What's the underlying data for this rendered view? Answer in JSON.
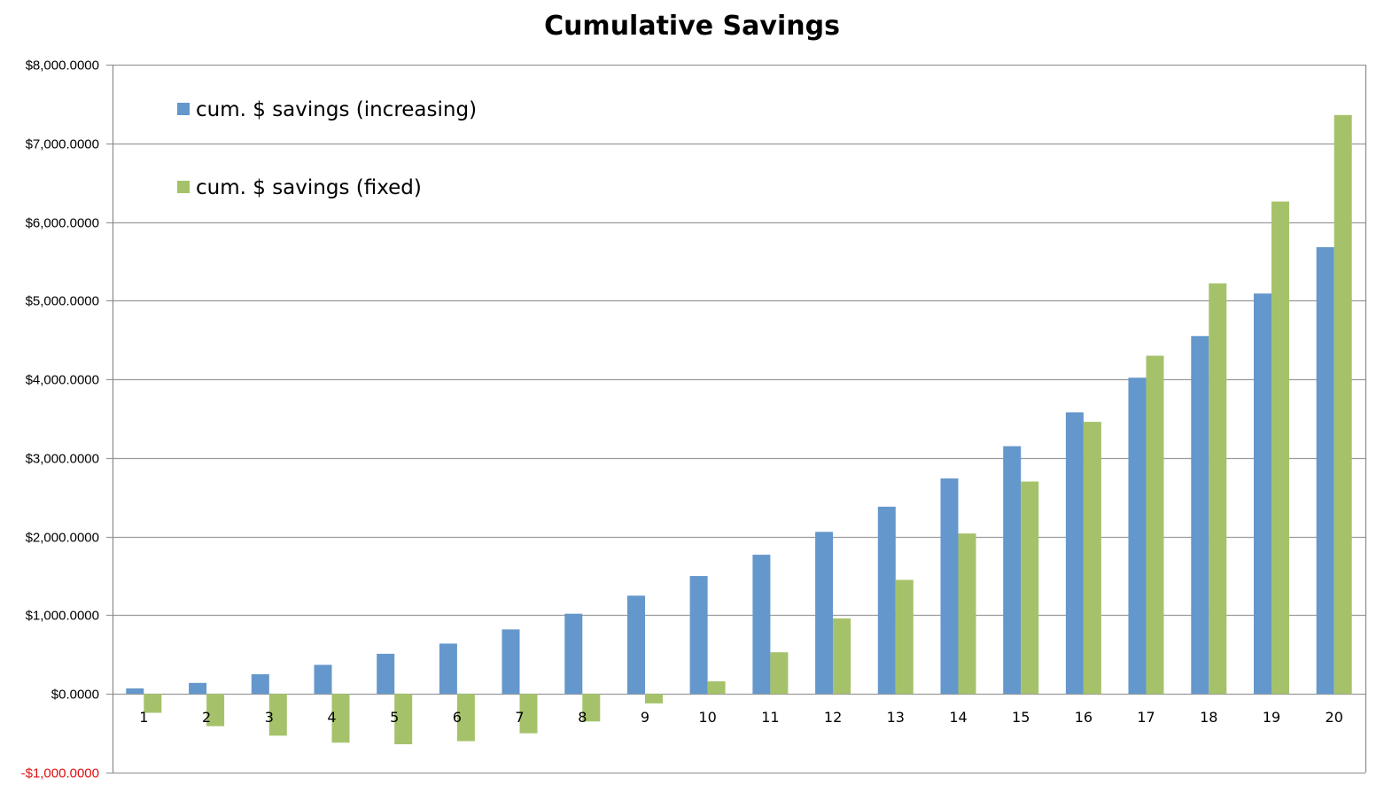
{
  "colors": {
    "series1": "#6497cb",
    "series2": "#a5c26a",
    "negative_label": "#e01010",
    "gridline": "#9b9b9b",
    "axis": "#8a8a8a"
  },
  "chart_data": {
    "type": "bar",
    "title": "Cumulative Savings",
    "xlabel": "",
    "ylabel": "",
    "categories": [
      "1",
      "2",
      "3",
      "4",
      "5",
      "6",
      "7",
      "8",
      "9",
      "10",
      "11",
      "12",
      "13",
      "14",
      "15",
      "16",
      "17",
      "18",
      "19",
      "20"
    ],
    "series": [
      {
        "name": "cum. $ savings (increasing)",
        "values": [
          70,
          140,
          250,
          370,
          510,
          640,
          820,
          1020,
          1250,
          1500,
          1770,
          2060,
          2380,
          2740,
          3150,
          3580,
          4020,
          4550,
          5090,
          5680
        ]
      },
      {
        "name": "cum. $ savings (fixed)",
        "values": [
          -240,
          -410,
          -530,
          -620,
          -640,
          -600,
          -500,
          -350,
          -120,
          160,
          530,
          960,
          1450,
          2040,
          2700,
          3460,
          4300,
          5220,
          6260,
          7360
        ]
      }
    ],
    "ylim": [
      -1000,
      8000
    ],
    "yticks": [
      -1000,
      0,
      1000,
      2000,
      3000,
      4000,
      5000,
      6000,
      7000,
      8000
    ],
    "ytick_labels": [
      "-$1,000.0000",
      "$0.0000",
      "$1,000.0000",
      "$2,000.0000",
      "$3,000.0000",
      "$4,000.0000",
      "$5,000.0000",
      "$6,000.0000",
      "$7,000.0000",
      "$8,000.0000"
    ],
    "grid": true,
    "legend_position": "top-left"
  }
}
